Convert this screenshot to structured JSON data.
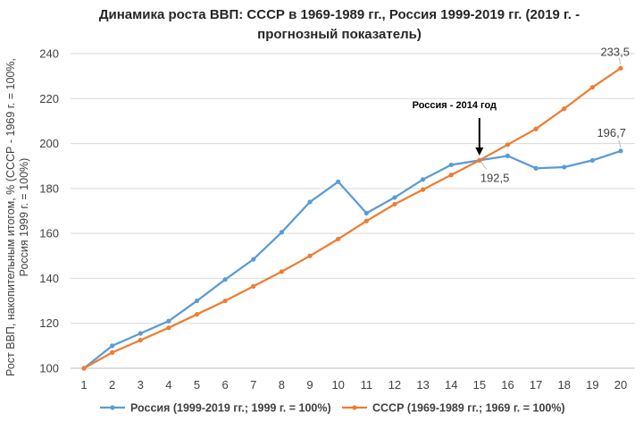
{
  "chart_data": {
    "type": "line",
    "title": "Динамика роста ВВП: СССР в 1969-1989 гг., Россия 1999-2019 гг. (2019 г. - прогнозный показатель)",
    "ylabel": "Рост ВВП, накопительным итогом, % (СССР - 1969 г. = 100%, Россия 1999 г. = 100%)",
    "xlabel": "",
    "x": [
      1,
      2,
      3,
      4,
      5,
      6,
      7,
      8,
      9,
      10,
      11,
      12,
      13,
      14,
      15,
      16,
      17,
      18,
      19,
      20
    ],
    "ylim": [
      100,
      240
    ],
    "yticks": [
      100,
      120,
      140,
      160,
      180,
      200,
      220,
      240
    ],
    "grid": true,
    "legend_position": "bottom",
    "series": [
      {
        "name": "Россия (1999-2019 гг.; 1999 г. = 100%)",
        "color": "#5B9BD5",
        "values": [
          100,
          110,
          115.5,
          121,
          130,
          139.5,
          148.5,
          160.5,
          174,
          183,
          169,
          176,
          184,
          190.5,
          192.5,
          194.5,
          189,
          189.5,
          192.5,
          196.7
        ]
      },
      {
        "name": "СССР (1969-1989 гг.; 1969 г. = 100%)",
        "color": "#ED7D31",
        "values": [
          100,
          107,
          112.5,
          118,
          124,
          130,
          136.5,
          143,
          150,
          157.5,
          165.5,
          173,
          179.5,
          186,
          192.5,
          199.5,
          206.5,
          215.5,
          225,
          233.5
        ]
      }
    ],
    "data_labels": [
      {
        "x": 20,
        "y": 233.5,
        "text": "233,5"
      },
      {
        "x": 20,
        "y": 196.7,
        "text": "196,7"
      },
      {
        "x": 15,
        "y": 192.5,
        "text": "192,5"
      }
    ],
    "annotation": {
      "x": 15,
      "text": "Россия - 2014 год"
    }
  }
}
